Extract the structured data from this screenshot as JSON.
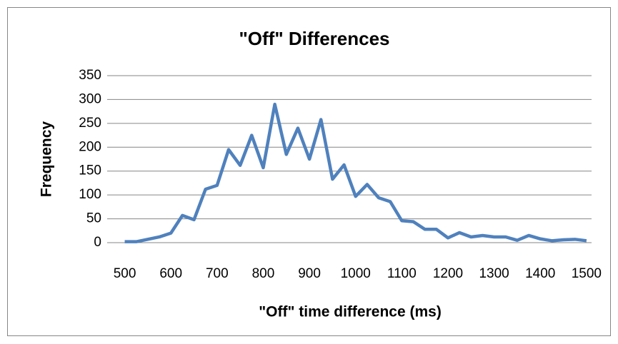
{
  "chart_data": {
    "type": "line",
    "title": "\"Off\" Differences",
    "x_label": "\"Off\" time difference (ms)",
    "y_label": "Frequency",
    "x": [
      500,
      525,
      550,
      575,
      600,
      625,
      650,
      675,
      700,
      725,
      750,
      775,
      800,
      825,
      850,
      875,
      900,
      925,
      950,
      975,
      1000,
      1025,
      1050,
      1075,
      1100,
      1125,
      1150,
      1175,
      1200,
      1225,
      1250,
      1275,
      1300,
      1325,
      1350,
      1375,
      1400,
      1425,
      1450,
      1475,
      1500
    ],
    "series": [
      {
        "name": "Frequency",
        "color": "#4f81bd",
        "values": [
          2,
          2,
          7,
          12,
          20,
          57,
          48,
          112,
          120,
          195,
          162,
          225,
          157,
          290,
          185,
          240,
          175,
          258,
          133,
          163,
          97,
          122,
          94,
          86,
          46,
          44,
          28,
          28,
          10,
          21,
          12,
          15,
          12,
          12,
          5,
          15,
          8,
          4,
          6,
          7,
          4
        ]
      }
    ],
    "xlim": [
      462,
      1511
    ],
    "xticks": [
      500,
      600,
      700,
      800,
      900,
      1000,
      1100,
      1200,
      1300,
      1400,
      1500
    ],
    "ylim": [
      0,
      350
    ],
    "yticks": [
      0,
      50,
      100,
      150,
      200,
      250,
      300,
      350
    ],
    "grid": true
  }
}
